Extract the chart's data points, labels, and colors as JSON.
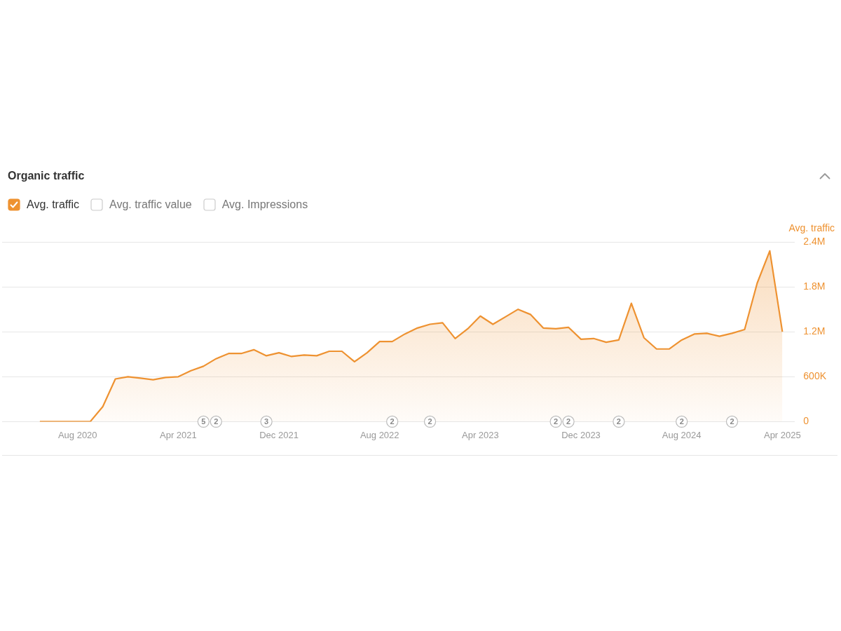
{
  "chart_data": {
    "type": "area",
    "title": "Organic traffic",
    "ylabel": "Avg. traffic",
    "x": [
      "2020-05",
      "2020-06",
      "2020-07",
      "2020-08",
      "2020-09",
      "2020-10",
      "2020-11",
      "2020-12",
      "2021-01",
      "2021-02",
      "2021-03",
      "2021-04",
      "2021-05",
      "2021-06",
      "2021-07",
      "2021-08",
      "2021-09",
      "2021-10",
      "2021-11",
      "2021-12",
      "2022-01",
      "2022-02",
      "2022-03",
      "2022-04",
      "2022-05",
      "2022-06",
      "2022-07",
      "2022-08",
      "2022-09",
      "2022-10",
      "2022-11",
      "2022-12",
      "2023-01",
      "2023-02",
      "2023-03",
      "2023-04",
      "2023-05",
      "2023-06",
      "2023-07",
      "2023-08",
      "2023-09",
      "2023-10",
      "2023-11",
      "2023-12",
      "2024-01",
      "2024-02",
      "2024-03",
      "2024-04",
      "2024-05",
      "2024-06",
      "2024-07",
      "2024-08",
      "2024-09",
      "2024-10",
      "2024-11",
      "2024-12",
      "2025-01",
      "2025-02",
      "2025-03",
      "2025-04"
    ],
    "series": [
      {
        "name": "Avg. traffic",
        "color": "#ee9231",
        "values": [
          0,
          0,
          0,
          0,
          0,
          200000,
          570000,
          600000,
          580000,
          560000,
          590000,
          600000,
          680000,
          740000,
          840000,
          910000,
          910000,
          960000,
          880000,
          920000,
          870000,
          890000,
          880000,
          940000,
          940000,
          800000,
          920000,
          1070000,
          1070000,
          1170000,
          1250000,
          1300000,
          1320000,
          1110000,
          1240000,
          1410000,
          1300000,
          1400000,
          1500000,
          1430000,
          1250000,
          1240000,
          1260000,
          1100000,
          1110000,
          1060000,
          1090000,
          1580000,
          1120000,
          970000,
          970000,
          1090000,
          1170000,
          1180000,
          1140000,
          1180000,
          1230000,
          1850000,
          2280000,
          1200000
        ]
      }
    ],
    "xlim": [
      "2020-02",
      "2025-05"
    ],
    "xticks": [
      {
        "value": "2020-08",
        "label": "Aug 2020"
      },
      {
        "value": "2021-04",
        "label": "Apr 2021"
      },
      {
        "value": "2021-12",
        "label": "Dec 2021"
      },
      {
        "value": "2022-08",
        "label": "Aug 2022"
      },
      {
        "value": "2023-04",
        "label": "Apr 2023"
      },
      {
        "value": "2023-12",
        "label": "Dec 2023"
      },
      {
        "value": "2024-08",
        "label": "Aug 2024"
      },
      {
        "value": "2025-04",
        "label": "Apr 2025"
      }
    ],
    "ylim": [
      0,
      2400000
    ],
    "yticks": [
      0,
      {
        "value": 600000,
        "label": "600K"
      },
      {
        "value": 1200000,
        "label": "1.2M"
      },
      {
        "value": 1800000,
        "label": "1.8M"
      },
      {
        "value": 2400000,
        "label": "2.4M"
      }
    ],
    "grid": "y",
    "legend": "top left",
    "annotations": [
      "Avg. traffic value",
      "Avg. Impressions",
      {
        "text": "5",
        "x": "2021-06",
        "y": 0
      },
      {
        "text": "2",
        "x": "2021-07",
        "y": 0
      },
      {
        "text": "3",
        "x": "2021-11",
        "y": 0
      },
      {
        "text": "2",
        "x": "2022-09",
        "y": 0
      },
      {
        "text": "2",
        "x": "2022-12",
        "y": 0
      },
      {
        "text": "2",
        "x": "2023-10",
        "y": 0
      },
      {
        "text": "2",
        "x": "2023-11",
        "y": 0
      },
      {
        "text": "2",
        "x": "2024-03",
        "y": 0
      },
      {
        "text": "2",
        "x": "2024-08",
        "y": 0
      },
      {
        "text": "2",
        "x": "2024-12",
        "y": 0
      }
    ]
  }
}
